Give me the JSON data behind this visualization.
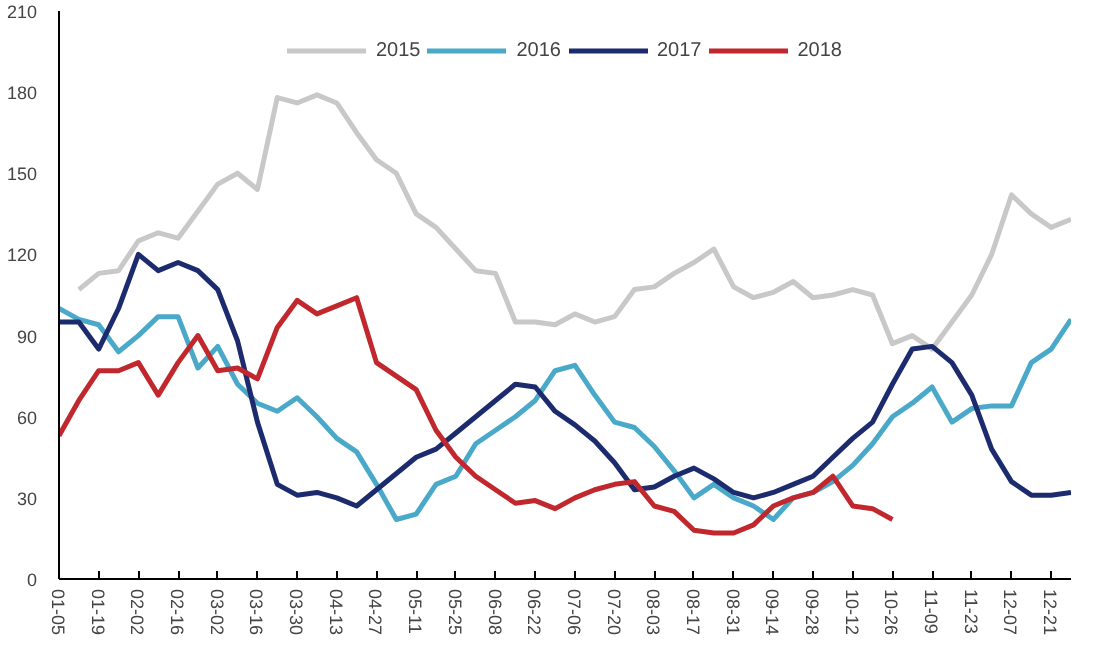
{
  "chart_data": {
    "type": "line",
    "categories": [
      "01-05",
      null,
      "01-19",
      null,
      "02-02",
      null,
      "02-16",
      null,
      "03-02",
      null,
      "03-16",
      null,
      "03-30",
      null,
      "04-13",
      null,
      "04-27",
      null,
      "05-11",
      null,
      "05-25",
      null,
      "06-08",
      null,
      "06-22",
      null,
      "07-06",
      null,
      "07-20",
      null,
      "08-03",
      null,
      "08-17",
      null,
      "08-31",
      null,
      "09-14",
      null,
      "09-28",
      null,
      "10-12",
      null,
      "10-26",
      null,
      "11-09",
      null,
      "11-23",
      null,
      "12-07",
      null,
      "12-21",
      null
    ],
    "ylim": [
      0,
      210
    ],
    "yticks": [
      0,
      30,
      60,
      90,
      120,
      150,
      180,
      210
    ],
    "grid": false,
    "legend": "top",
    "marker": "none",
    "line_style": "solid",
    "series": [
      {
        "name": "2015",
        "color": "#c8c8c8",
        "values": [
          null,
          107,
          113,
          114,
          125,
          128,
          126,
          136,
          146,
          150,
          144,
          178,
          176,
          179,
          176,
          165,
          155,
          150,
          135,
          130,
          122,
          114,
          113,
          95,
          95,
          94,
          98,
          95,
          97,
          107,
          108,
          113,
          117,
          122,
          108,
          104,
          106,
          110,
          104,
          105,
          107,
          105,
          87,
          90,
          85,
          95,
          105,
          120,
          142,
          135,
          130,
          133
        ]
      },
      {
        "name": "2016",
        "color": "#4aa8c8",
        "values": [
          100,
          96,
          94,
          84,
          90,
          97,
          97,
          78,
          86,
          72,
          65,
          62,
          67,
          60,
          52,
          47,
          35,
          22,
          24,
          35,
          38,
          50,
          55,
          60,
          66,
          77,
          79,
          68,
          58,
          56,
          49,
          40,
          30,
          35,
          30,
          27,
          22,
          30,
          32,
          36,
          42,
          50,
          60,
          65,
          71,
          58,
          63,
          64,
          64,
          80,
          85,
          96
        ]
      },
      {
        "name": "2017",
        "color": "#1c2a6e",
        "values": [
          95,
          95,
          85,
          100,
          120,
          114,
          117,
          114,
          107,
          88,
          58,
          35,
          31,
          32,
          30,
          27,
          33,
          39,
          45,
          48,
          54,
          60,
          66,
          72,
          71,
          62,
          57,
          51,
          43,
          33,
          34,
          38,
          41,
          37,
          32,
          30,
          32,
          35,
          38,
          45,
          52,
          58,
          72,
          85,
          86,
          80,
          68,
          48,
          36,
          31,
          31,
          32
        ]
      },
      {
        "name": "2018",
        "color": "#c0282e",
        "values": [
          53,
          66,
          77,
          77,
          80,
          68,
          80,
          90,
          77,
          78,
          74,
          93,
          103,
          98,
          101,
          104,
          80,
          75,
          70,
          55,
          45,
          38,
          33,
          28,
          29,
          26,
          30,
          33,
          35,
          36,
          27,
          25,
          18,
          17,
          17,
          20,
          27,
          30,
          32,
          38,
          27,
          26,
          22,
          null,
          null,
          null,
          null,
          null,
          null,
          null,
          null,
          null
        ]
      }
    ]
  }
}
